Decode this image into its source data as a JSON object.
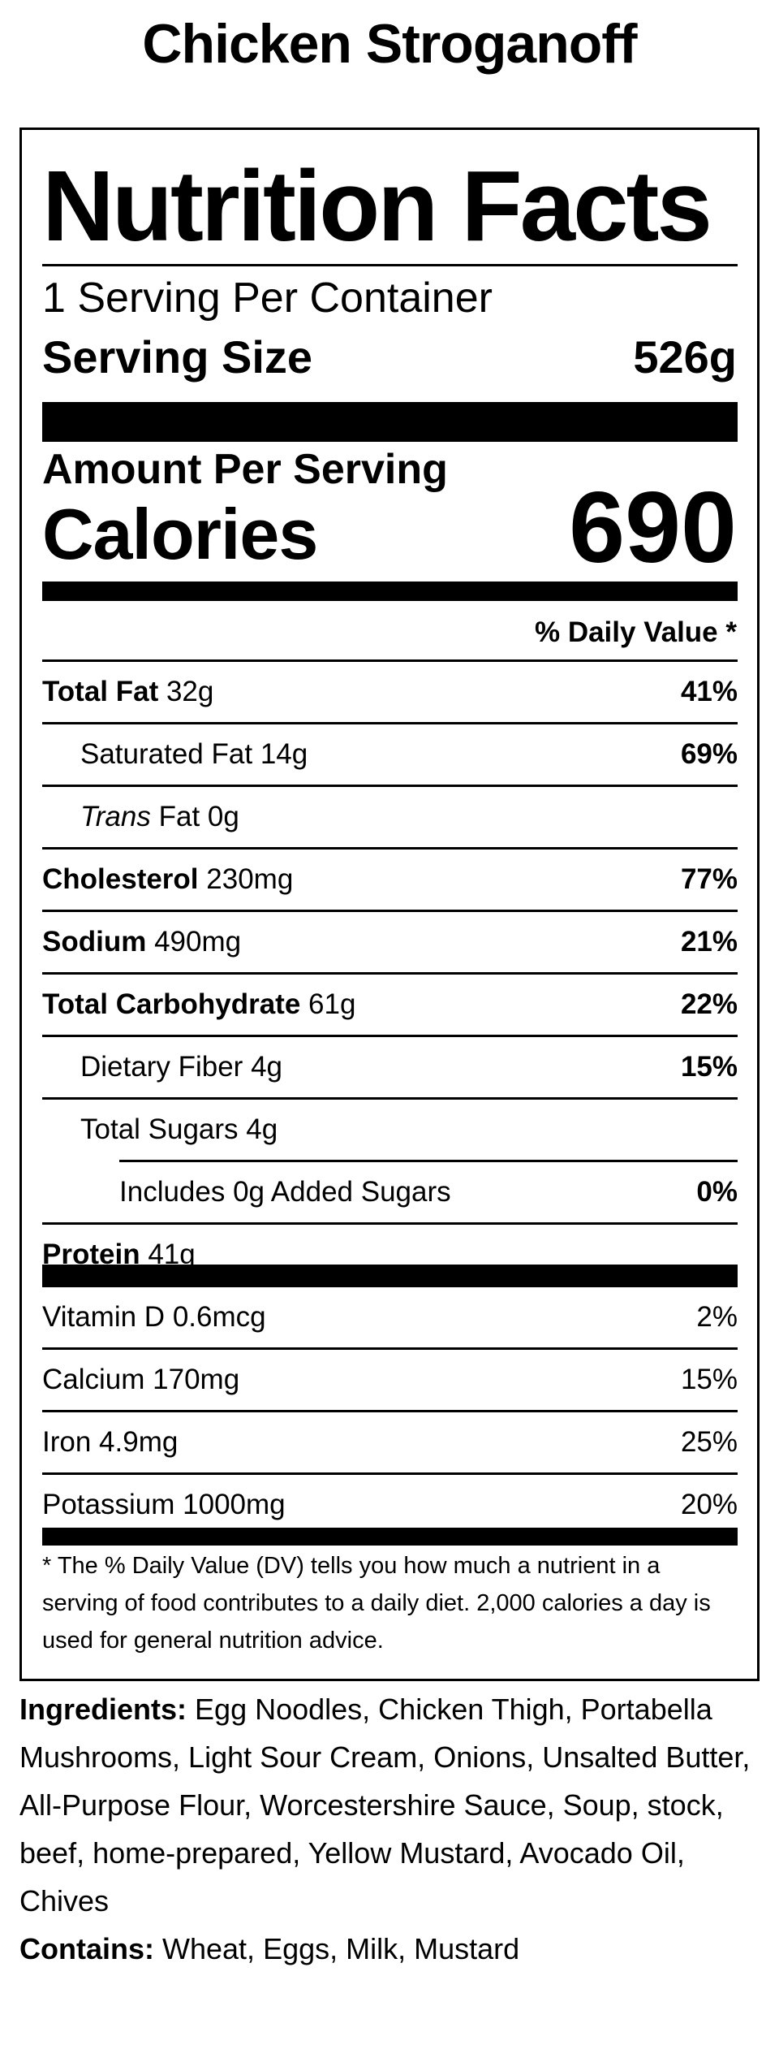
{
  "recipe_title": "Chicken Stroganoff",
  "label": {
    "heading": "Nutrition Facts",
    "servings_per_container": "1 Serving Per Container",
    "serving_size_label": "Serving Size",
    "serving_size_value": "526g",
    "amount_per_serving": "Amount Per Serving",
    "calories_label": "Calories",
    "calories_value": "690",
    "daily_value_header": "% Daily Value *",
    "nutrients": [
      {
        "name": "Total Fat",
        "amount": "32g",
        "dv": "41%"
      },
      {
        "name": "Saturated Fat",
        "amount": "14g",
        "dv": "69%"
      },
      {
        "name_italic": "Trans",
        "name": "Fat",
        "amount": "0g",
        "dv": ""
      },
      {
        "name": "Cholesterol",
        "amount": "230mg",
        "dv": "77%"
      },
      {
        "name": "Sodium",
        "amount": "490mg",
        "dv": "21%"
      },
      {
        "name": "Total Carbohydrate",
        "amount": "61g",
        "dv": "22%"
      },
      {
        "name": "Dietary Fiber",
        "amount": "4g",
        "dv": "15%"
      },
      {
        "name": "Total Sugars",
        "amount": "4g",
        "dv": ""
      },
      {
        "name": "Includes 0g Added Sugars",
        "amount": "",
        "dv": "0%"
      },
      {
        "name": "Protein",
        "amount": "41g",
        "dv": ""
      }
    ],
    "vitamins": [
      {
        "name": "Vitamin D",
        "amount": "0.6mcg",
        "dv": "2%"
      },
      {
        "name": "Calcium",
        "amount": "170mg",
        "dv": "15%"
      },
      {
        "name": "Iron",
        "amount": "4.9mg",
        "dv": "25%"
      },
      {
        "name": "Potassium",
        "amount": "1000mg",
        "dv": "20%"
      }
    ],
    "footnote": "* The % Daily Value (DV) tells you how much a nutrient in a serving of food contributes to a daily diet. 2,000 calories a day is used for general nutrition advice."
  },
  "ingredients": {
    "label": "Ingredients:",
    "text": "Egg Noodles, Chicken Thigh, Portabella Mushrooms, Light Sour Cream, Onions, Unsalted Butter, All-Purpose Flour, Worcestershire Sauce, Soup, stock, beef, home-prepared, Yellow Mustard, Avocado Oil, Chives"
  },
  "contains": {
    "label": "Contains:",
    "text": "Wheat, Eggs, Milk, Mustard"
  }
}
